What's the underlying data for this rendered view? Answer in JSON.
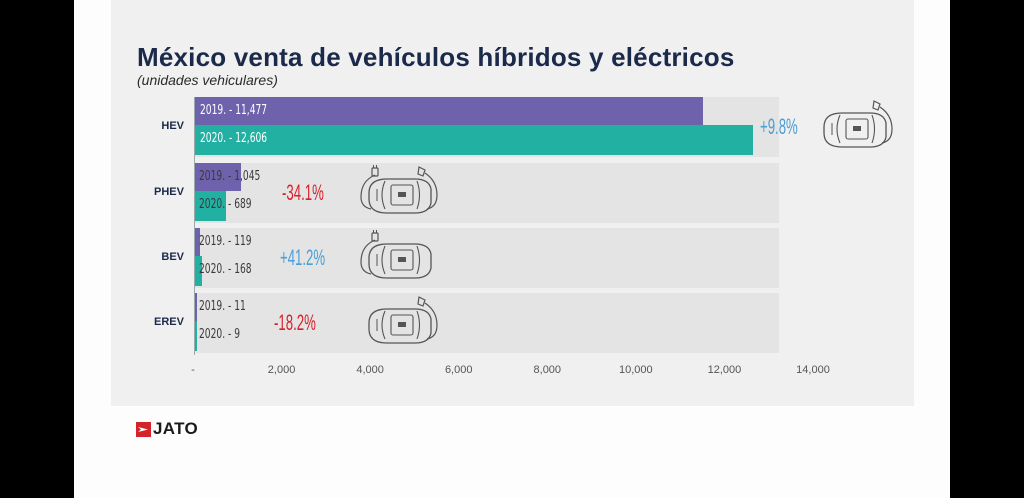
{
  "header": {
    "title": "México venta de vehículos híbridos y eléctricos",
    "subtitle": "(unidades vehiculares)"
  },
  "brand": {
    "logo_text": "JATO"
  },
  "colors": {
    "y2019": "#6e62ad",
    "y2020": "#22b0a3",
    "positive": "#4a9fd4",
    "negative": "#d7212b",
    "title": "#1b2a4a"
  },
  "chart_data": {
    "type": "bar",
    "orientation": "horizontal",
    "title": "México venta de vehículos híbridos y eléctricos",
    "subtitle": "(unidades vehiculares)",
    "categories": [
      "HEV",
      "PHEV",
      "BEV",
      "EREV"
    ],
    "series": [
      {
        "name": "2019",
        "values": [
          11477,
          1045,
          119,
          11
        ]
      },
      {
        "name": "2020",
        "values": [
          12606,
          689,
          168,
          9
        ]
      }
    ],
    "bar_labels": [
      {
        "y2019": "2019. - 11,477",
        "y2020": "2020. - 12,606"
      },
      {
        "y2019": "2019. - 1,045",
        "y2020": "2020. - 689"
      },
      {
        "y2019": "2019. - 119",
        "y2020": "2020. - 168"
      },
      {
        "y2019": "2019. - 11",
        "y2020": "2020. - 9"
      }
    ],
    "changes": [
      {
        "category": "HEV",
        "label": "+9.8%",
        "direction": "positive",
        "icon": "car-fuel-pump-icon"
      },
      {
        "category": "PHEV",
        "label": "-34.1%",
        "direction": "negative",
        "icon": "car-plug-and-fuel-icon"
      },
      {
        "category": "BEV",
        "label": "+41.2%",
        "direction": "positive",
        "icon": "car-plug-icon"
      },
      {
        "category": "EREV",
        "label": "-18.2%",
        "direction": "negative",
        "icon": "car-fuel-pump-icon"
      }
    ],
    "xlim": [
      0,
      14000
    ],
    "xticks": [
      0,
      2000,
      4000,
      6000,
      8000,
      10000,
      12000,
      14000
    ],
    "xtick_labels": [
      "-",
      "2,000",
      "4,000",
      "6,000",
      "8,000",
      "10,000",
      "12,000",
      "14,000"
    ],
    "xlabel": "",
    "ylabel": "",
    "grid": false,
    "legend": "none"
  }
}
